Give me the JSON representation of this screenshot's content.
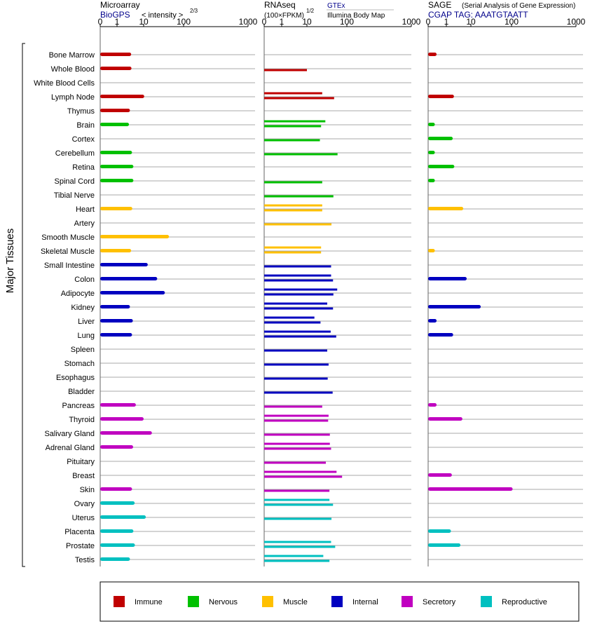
{
  "chart_data": {
    "type": "bar",
    "y_axis_title": "Major Tissues",
    "tick_labels": [
      "0",
      "1",
      "10",
      "100",
      "1000"
    ],
    "categories": [
      "Bone Marrow",
      "Whole Blood",
      "White Blood Cells",
      "Lymph Node",
      "Thymus",
      "Brain",
      "Cortex",
      "Cerebellum",
      "Retina",
      "Spinal Cord",
      "Tibial Nerve",
      "Heart",
      "Artery",
      "Smooth Muscle",
      "Skeletal Muscle",
      "Small Intestine",
      "Colon",
      "Adipocyte",
      "Kidney",
      "Liver",
      "Lung",
      "Spleen",
      "Stomach",
      "Esophagus",
      "Bladder",
      "Pancreas",
      "Thyroid",
      "Salivary Gland",
      "Adrenal Gland",
      "Pituitary",
      "Breast",
      "Skin",
      "Ovary",
      "Uterus",
      "Placenta",
      "Prostate",
      "Testis"
    ],
    "groups": [
      0,
      0,
      0,
      0,
      0,
      1,
      1,
      1,
      1,
      1,
      1,
      2,
      2,
      2,
      2,
      3,
      3,
      3,
      3,
      3,
      3,
      3,
      3,
      3,
      3,
      4,
      4,
      4,
      4,
      4,
      4,
      4,
      5,
      5,
      5,
      5,
      5
    ],
    "legend": [
      {
        "name": "Immune",
        "color": "#c00000"
      },
      {
        "name": "Nervous",
        "color": "#00c000"
      },
      {
        "name": "Muscle",
        "color": "#ffc000"
      },
      {
        "name": "Internal",
        "color": "#0000c0"
      },
      {
        "name": "Secretory",
        "color": "#c000c0"
      },
      {
        "name": "Reproductive",
        "color": "#00c0c0"
      }
    ],
    "panels": [
      {
        "title": "Microarray",
        "subtitle": "BioGPS",
        "subtitle2": "< intensity >",
        "superscript": "2/3",
        "values": [
          [
            4.2
          ],
          [
            4.3
          ],
          [],
          [
            10.5
          ],
          [
            3.8
          ],
          [
            3.5
          ],
          [],
          [
            4.5
          ],
          [
            5
          ],
          [
            5
          ],
          [],
          [
            4.6
          ],
          [],
          [
            52
          ],
          [
            4.2
          ],
          [
            14
          ],
          [
            27
          ],
          [
            42
          ],
          [
            3.8
          ],
          [
            4.8
          ],
          [
            4.5
          ],
          [],
          [],
          [],
          [],
          [
            6
          ],
          [
            10
          ],
          [
            19
          ],
          [
            4.9
          ],
          [],
          [],
          [
            4.5
          ],
          [
            5.5
          ],
          [
            12
          ],
          [
            5
          ],
          [
            5.6
          ],
          [
            3.8
          ]
        ]
      },
      {
        "title": "RNAseq",
        "subtitle": "(100×FPKM)",
        "superscript": "1/2",
        "subtitle_right": "GTEx",
        "subtitle2": "Illumina Body Map",
        "values": [
          [],
          [
            10
          ],
          [],
          [
            30,
            57
          ],
          [],
          [
            36,
            28
          ],
          [
            26
          ],
          [
            67
          ],
          [],
          [
            30
          ],
          [
            55
          ],
          [
            30,
            30
          ],
          [
            50
          ],
          [],
          [
            28,
            28
          ],
          [
            49
          ],
          [
            49,
            54
          ],
          [
            66,
            55
          ],
          [
            40,
            54
          ],
          [
            18,
            27
          ],
          [
            48,
            63
          ],
          [
            40
          ],
          [
            43
          ],
          [
            41
          ],
          [
            53
          ],
          [
            30
          ],
          [
            43,
            42
          ],
          [
            46
          ],
          [
            46,
            49
          ],
          [
            37
          ],
          [
            64,
            82
          ],
          [
            45
          ],
          [
            45,
            54
          ],
          [
            50
          ],
          [],
          [
            49,
            60
          ],
          [
            32,
            45
          ]
        ]
      },
      {
        "title": "SAGE",
        "subtitle_right": "(Serial Analysis of Gene Expression)",
        "subtitle": "CGAP  TAG: AAATGTAATT",
        "values": [
          [
            0.1
          ],
          [],
          [],
          [
            2.5
          ],
          [],
          [
            0.05
          ],
          [
            2.2
          ],
          [
            0.05
          ],
          [
            2.6
          ],
          [
            0.05
          ],
          [],
          [
            5.8
          ],
          [],
          [],
          [
            0.05
          ],
          [],
          [
            7.5
          ],
          [],
          [
            21
          ],
          [
            0.1
          ],
          [
            2.3
          ],
          [],
          [],
          [],
          [],
          [
            0.1
          ],
          [
            5.4
          ],
          [],
          [],
          [],
          [
            2
          ],
          [
            106
          ],
          [],
          [],
          [
            1.8
          ],
          [
            4.6
          ],
          []
        ]
      }
    ]
  }
}
